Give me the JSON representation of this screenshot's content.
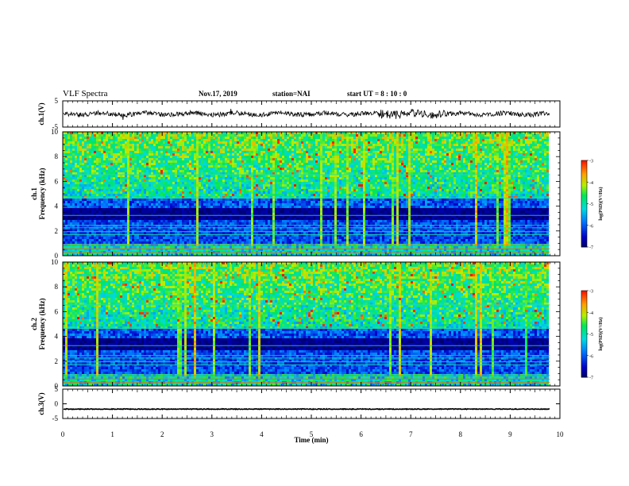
{
  "header": {
    "title": "VLF Spectra",
    "date": "Nov.17, 2019",
    "station": "station=NAI",
    "start": "start  UT =   8 : 10 : 0"
  },
  "chart_data": [
    {
      "type": "line",
      "panel": "ch1-waveform",
      "ylabel": "ch.1(V)",
      "ylim": [
        -5,
        5
      ],
      "yticks": [
        "5",
        "-5"
      ],
      "x_range_min": [
        0,
        10
      ],
      "data_extent_min": [
        0,
        9.8
      ],
      "mean_v": 0,
      "approx_amplitude_v": 1.5
    },
    {
      "type": "heatmap",
      "panel": "ch1-spectrogram",
      "ylabel": "ch.1\nFrequency  (kHz)",
      "ylim": [
        0,
        10
      ],
      "yticks": [
        "0",
        "2",
        "4",
        "6",
        "8",
        "10"
      ],
      "x_range_min": [
        0,
        10
      ],
      "data_extent_min": [
        0,
        9.8
      ],
      "colorbar": {
        "label": "log(PSD)(V²/Hz)",
        "range": [
          -7,
          -3
        ],
        "ticks": [
          "-3",
          "-4",
          "-5",
          "-6",
          "-7"
        ]
      }
    },
    {
      "type": "heatmap",
      "panel": "ch2-spectrogram",
      "ylabel": "ch.2\nFrequency  (kHz)",
      "ylim": [
        0,
        10
      ],
      "yticks": [
        "0",
        "2",
        "4",
        "6",
        "8",
        "10"
      ],
      "x_range_min": [
        0,
        10
      ],
      "data_extent_min": [
        0,
        9.8
      ],
      "colorbar": {
        "label": "log(PSD)(V²/Hz)",
        "range": [
          -7,
          -3
        ],
        "ticks": [
          "-3",
          "-4",
          "-5",
          "-6",
          "-7"
        ]
      }
    },
    {
      "type": "line",
      "panel": "ch3-waveform",
      "ylabel": "ch.3(V)",
      "ylim": [
        -5,
        5
      ],
      "yticks": [
        "5",
        "0",
        "-5"
      ],
      "x_range_min": [
        0,
        10
      ],
      "data_extent_min": [
        0,
        9.8
      ],
      "mean_v": -1.8
    }
  ],
  "xaxis": {
    "label": "Time  (min)",
    "ticks": [
      "0",
      "1",
      "2",
      "3",
      "4",
      "5",
      "6",
      "7",
      "8",
      "9",
      "10"
    ]
  },
  "colors": {
    "low": "#000066",
    "mid": "#00d2c8",
    "high": "#ff2000",
    "axis": "#000000"
  }
}
